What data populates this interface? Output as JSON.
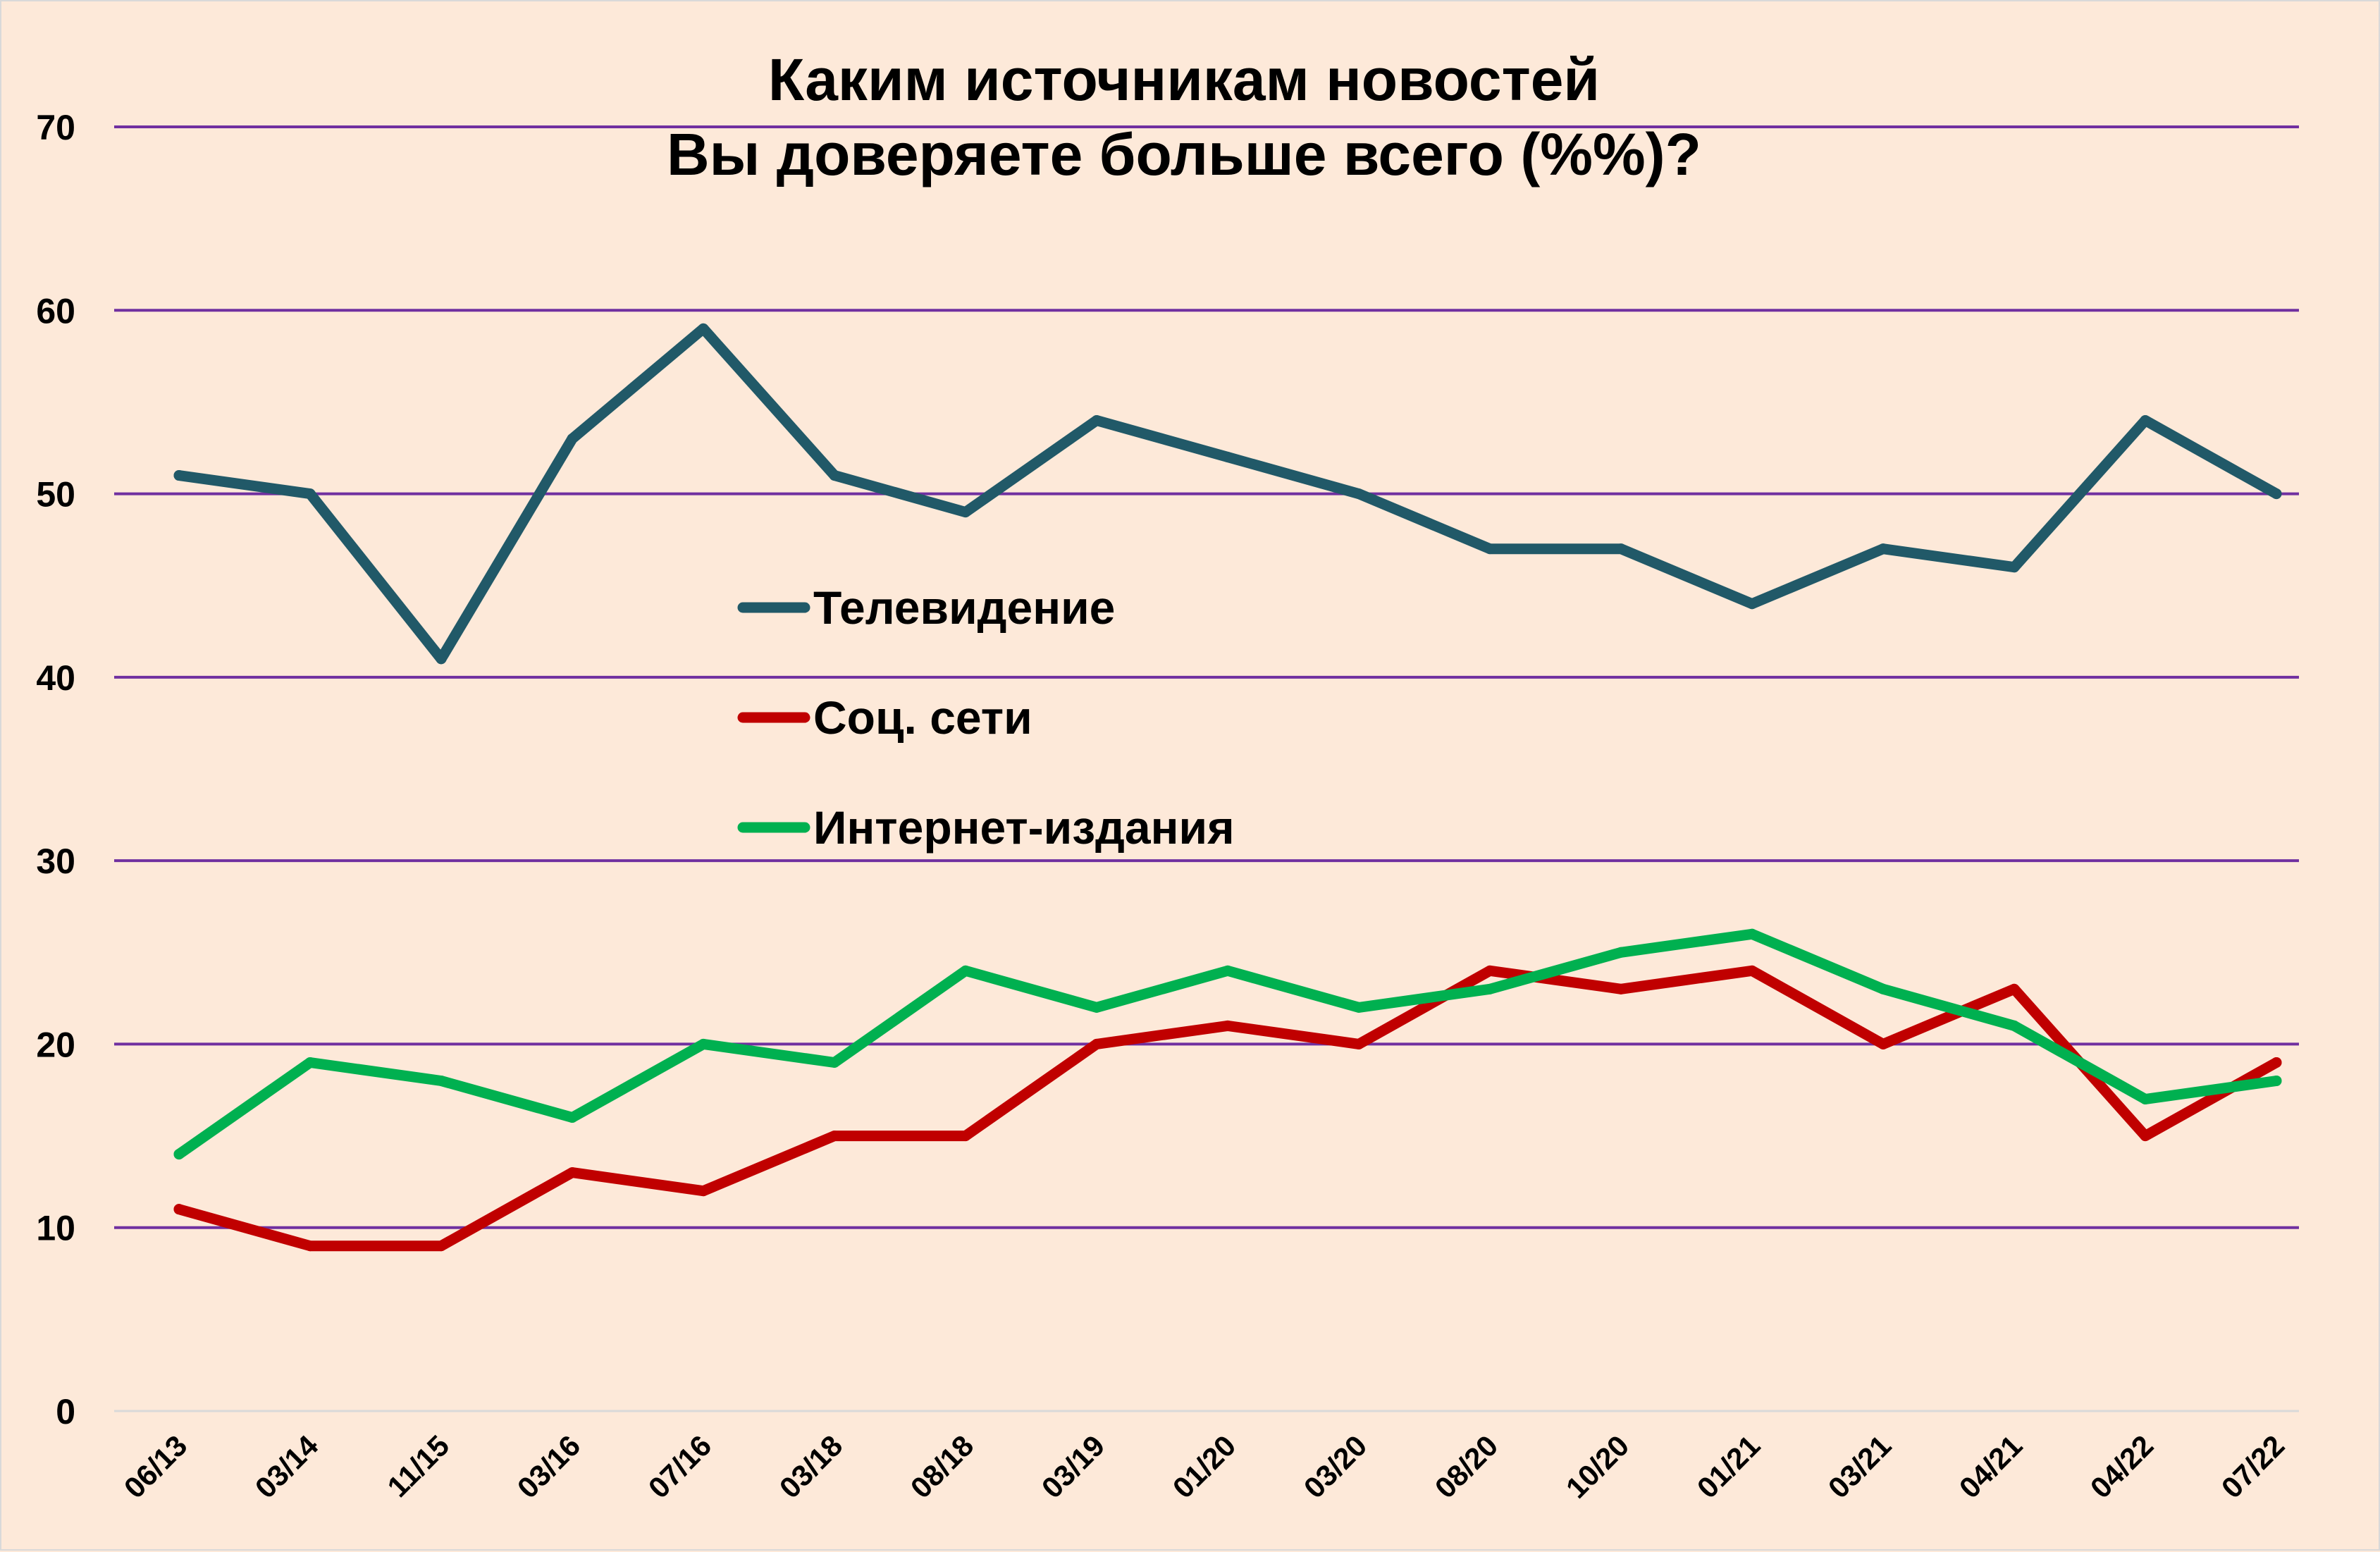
{
  "chart_data": {
    "type": "line",
    "title": "Каким источникам новостей",
    "subtitle": "Вы доверяете больше всего (%%)?",
    "xlabel": "",
    "ylabel": "",
    "ylim": [
      0,
      70
    ],
    "yticks": [
      "0",
      "10",
      "20",
      "30",
      "40",
      "50",
      "60",
      "70"
    ],
    "grid": true,
    "legend_position": "center",
    "categories": [
      "06/13",
      "03/14",
      "11/15",
      "03/16",
      "07/16",
      "03/18",
      "08/18",
      "03/19",
      "01/20",
      "03/20",
      "08/20",
      "10/20",
      "01/21",
      "03/21",
      "04/21",
      "04/22",
      "07/22"
    ],
    "series": [
      {
        "name": "Телевидение",
        "color": "#215968",
        "values": [
          51,
          50,
          41,
          53,
          59,
          51,
          49,
          54,
          52,
          50,
          47,
          47,
          44,
          47,
          46,
          54,
          50
        ]
      },
      {
        "name": "Соц. сети",
        "color": "#c00000",
        "values": [
          11,
          9,
          9,
          13,
          12,
          15,
          15,
          20,
          21,
          20,
          24,
          23,
          24,
          20,
          23,
          15,
          19
        ]
      },
      {
        "name": "Интернет-издания",
        "color": "#00b050",
        "values": [
          14,
          19,
          18,
          16,
          20,
          19,
          24,
          22,
          24,
          22,
          23,
          25,
          26,
          23,
          21,
          17,
          18
        ]
      }
    ],
    "gridline_color": "#7030a0"
  }
}
